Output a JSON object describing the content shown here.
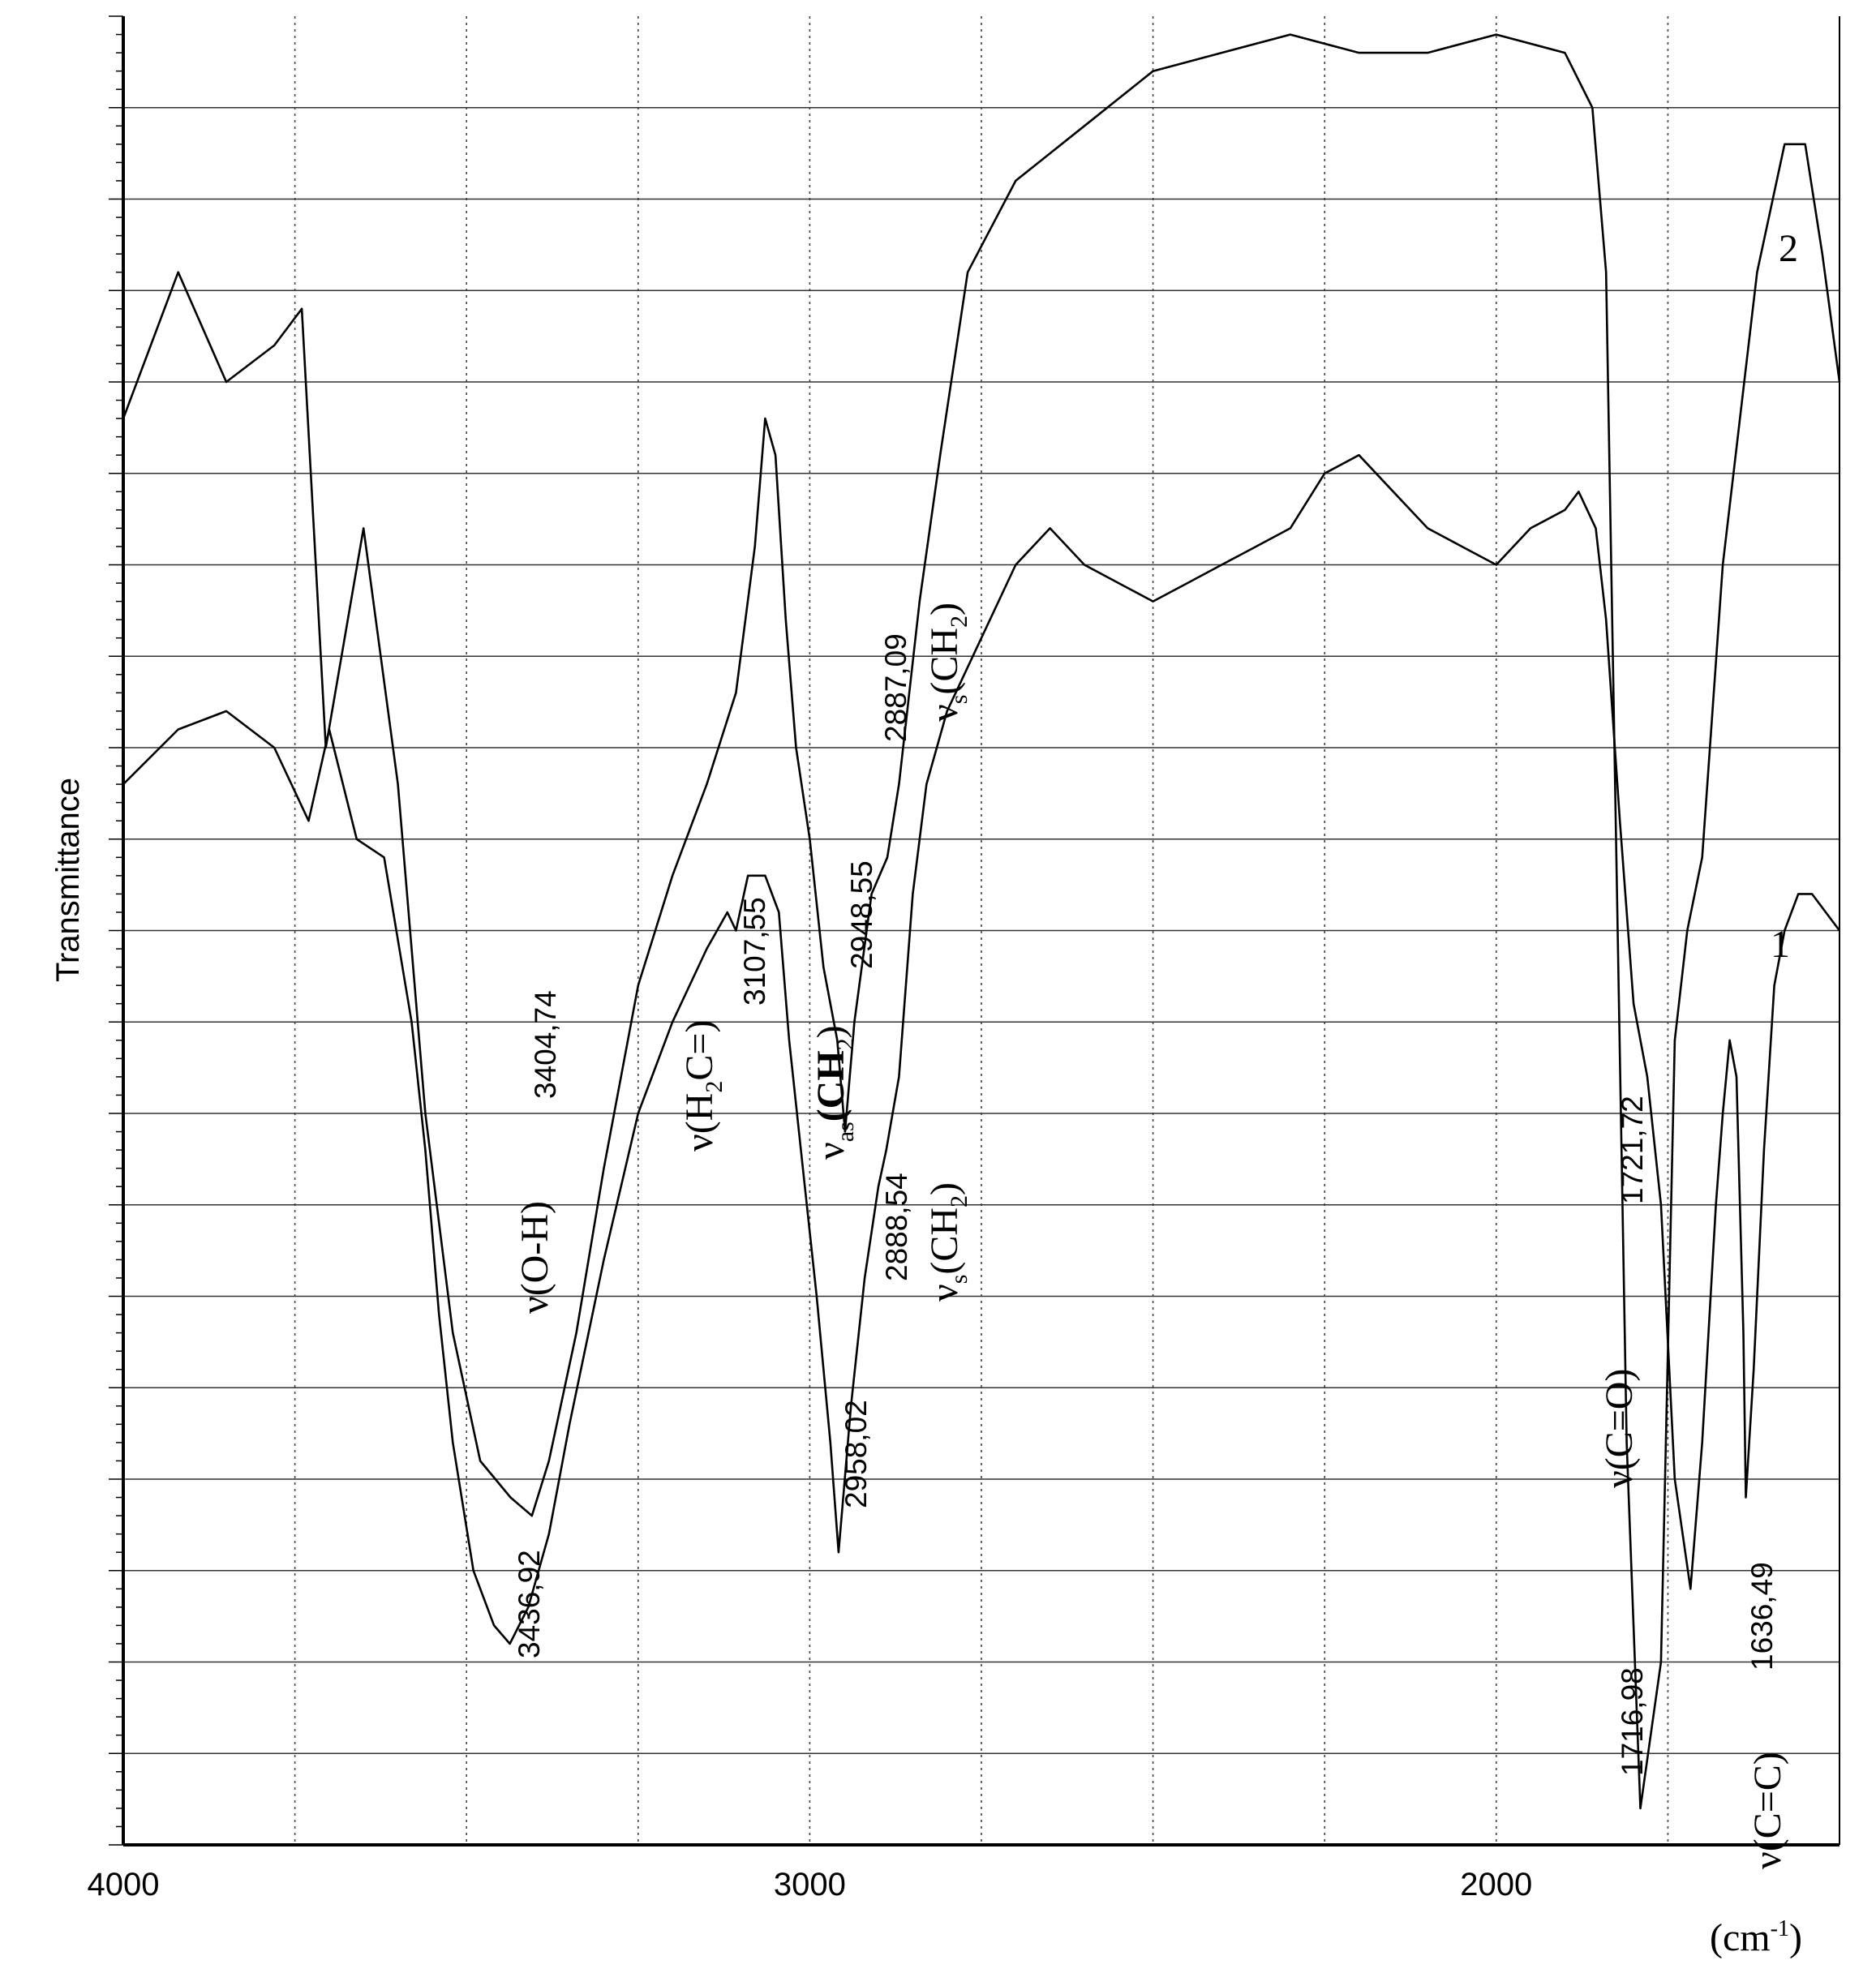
{
  "chart_data": {
    "type": "line",
    "ylabel": "Transmittance",
    "xunit_base": "(cm",
    "xunit_sup": "-1",
    "xunit_close": ")",
    "xlim": [
      4000,
      1500
    ],
    "x_ticks": [
      {
        "value": 4000,
        "label": "4000"
      },
      {
        "value": 3000,
        "label": "3000"
      },
      {
        "value": 2000,
        "label": "2000"
      }
    ],
    "grid": true,
    "series": [
      {
        "name": "2",
        "points": [
          [
            4000,
            78
          ],
          [
            3920,
            86
          ],
          [
            3850,
            80
          ],
          [
            3780,
            82
          ],
          [
            3740,
            84
          ],
          [
            3705,
            60
          ],
          [
            3650,
            72
          ],
          [
            3600,
            58
          ],
          [
            3560,
            40
          ],
          [
            3520,
            28
          ],
          [
            3480,
            21
          ],
          [
            3436,
            19
          ],
          [
            3404.74,
            18
          ],
          [
            3380,
            21
          ],
          [
            3340,
            28
          ],
          [
            3300,
            37
          ],
          [
            3250,
            47
          ],
          [
            3200,
            53
          ],
          [
            3150,
            58
          ],
          [
            3107.55,
            63
          ],
          [
            3080,
            71
          ],
          [
            3065,
            78
          ],
          [
            3050,
            76
          ],
          [
            3035,
            67
          ],
          [
            3020,
            60
          ],
          [
            3000,
            55
          ],
          [
            2980,
            48
          ],
          [
            2960,
            44
          ],
          [
            2948.55,
            39
          ],
          [
            2935,
            45
          ],
          [
            2910,
            52
          ],
          [
            2887.09,
            54
          ],
          [
            2870,
            58
          ],
          [
            2840,
            68
          ],
          [
            2810,
            76
          ],
          [
            2770,
            86
          ],
          [
            2700,
            91
          ],
          [
            2600,
            94
          ],
          [
            2500,
            97
          ],
          [
            2400,
            98
          ],
          [
            2300,
            99
          ],
          [
            2200,
            98
          ],
          [
            2100,
            98
          ],
          [
            2000,
            99
          ],
          [
            1900,
            98
          ],
          [
            1860,
            95
          ],
          [
            1840,
            86
          ],
          [
            1810,
            22
          ],
          [
            1790,
            2
          ],
          [
            1760,
            10
          ],
          [
            1740,
            44
          ],
          [
            1721.72,
            50
          ],
          [
            1700,
            54
          ],
          [
            1670,
            70
          ],
          [
            1620,
            86
          ],
          [
            1580,
            93
          ],
          [
            1550,
            93
          ],
          [
            1525,
            87
          ],
          [
            1500,
            80
          ]
        ]
      },
      {
        "name": "1",
        "points": [
          [
            4000,
            58
          ],
          [
            3920,
            61
          ],
          [
            3850,
            62
          ],
          [
            3780,
            60
          ],
          [
            3730,
            56
          ],
          [
            3700,
            61
          ],
          [
            3660,
            55
          ],
          [
            3620,
            54
          ],
          [
            3580,
            45
          ],
          [
            3560,
            38
          ],
          [
            3540,
            29
          ],
          [
            3520,
            22
          ],
          [
            3490,
            15
          ],
          [
            3460,
            12
          ],
          [
            3436.92,
            11
          ],
          [
            3410,
            13
          ],
          [
            3380,
            17
          ],
          [
            3350,
            23
          ],
          [
            3300,
            32
          ],
          [
            3250,
            40
          ],
          [
            3200,
            45
          ],
          [
            3150,
            49
          ],
          [
            3120,
            51
          ],
          [
            3107.55,
            50
          ],
          [
            3090,
            53
          ],
          [
            3065,
            53
          ],
          [
            3045,
            51
          ],
          [
            3030,
            44
          ],
          [
            3010,
            37
          ],
          [
            2990,
            30
          ],
          [
            2970,
            22
          ],
          [
            2958.02,
            16
          ],
          [
            2940,
            24
          ],
          [
            2920,
            31
          ],
          [
            2900,
            36
          ],
          [
            2888.54,
            38
          ],
          [
            2870,
            42
          ],
          [
            2850,
            52
          ],
          [
            2830,
            58
          ],
          [
            2800,
            62
          ],
          [
            2750,
            66
          ],
          [
            2700,
            70
          ],
          [
            2650,
            72
          ],
          [
            2600,
            70
          ],
          [
            2550,
            69
          ],
          [
            2500,
            68
          ],
          [
            2450,
            69
          ],
          [
            2400,
            70
          ],
          [
            2350,
            71
          ],
          [
            2300,
            72
          ],
          [
            2250,
            75
          ],
          [
            2200,
            76
          ],
          [
            2150,
            74
          ],
          [
            2100,
            72
          ],
          [
            2050,
            71
          ],
          [
            2000,
            70
          ],
          [
            1950,
            72
          ],
          [
            1900,
            73
          ],
          [
            1880,
            74
          ],
          [
            1855,
            72
          ],
          [
            1840,
            67
          ],
          [
            1820,
            56
          ],
          [
            1800,
            46
          ],
          [
            1780,
            42
          ],
          [
            1760,
            35
          ],
          [
            1740,
            20
          ],
          [
            1716.98,
            14
          ],
          [
            1700,
            22
          ],
          [
            1680,
            35
          ],
          [
            1670,
            40
          ],
          [
            1660,
            44
          ],
          [
            1650,
            42
          ],
          [
            1640,
            28
          ],
          [
            1636.49,
            19
          ],
          [
            1625,
            26
          ],
          [
            1610,
            38
          ],
          [
            1595,
            47
          ],
          [
            1580,
            50
          ],
          [
            1560,
            52
          ],
          [
            1540,
            52
          ],
          [
            1520,
            51
          ],
          [
            1500,
            50
          ]
        ]
      }
    ],
    "annotations": [
      {
        "text": "3404,74"
      },
      {
        "text": "3436,92"
      },
      {
        "text": "3107,55"
      },
      {
        "text": "2948,55"
      },
      {
        "text": "2958,02"
      },
      {
        "text": "2887,09"
      },
      {
        "text": "2888,54"
      },
      {
        "text": "1721,72"
      },
      {
        "text": "1716,98"
      },
      {
        "text": "1636,49"
      }
    ],
    "band_labels": {
      "v_oh": "ν(O-H)",
      "v_h2c_main": "ν(H",
      "v_h2c_sub": "2",
      "v_h2c_end": "C=)",
      "v_as_nu": "ν",
      "v_as_sub": "as",
      "v_as_ch": "(CH",
      "v_as_2": "2",
      "v_as_close": ")",
      "v_s_nu": "ν",
      "v_s_sub": "s",
      "v_s_ch": "(CH",
      "v_s_2": "2",
      "v_s_close": ")",
      "v_co": "ν(C=O)",
      "v_cc": "ν(C=C)"
    },
    "curve_labels": {
      "curve2": "2",
      "curve1": "1"
    }
  }
}
